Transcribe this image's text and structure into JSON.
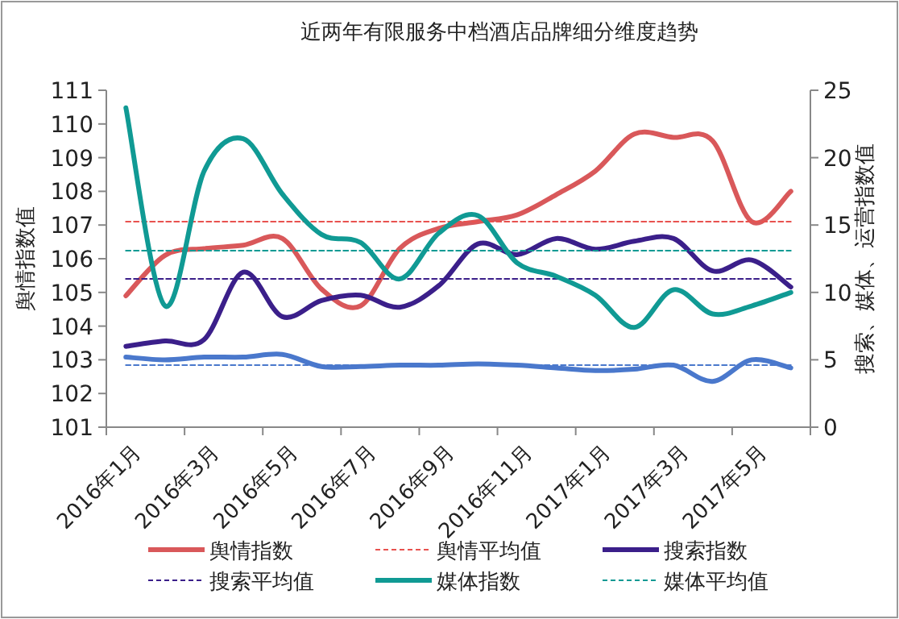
{
  "chart_data": {
    "type": "line",
    "title": "近两年有限服务中档酒店品牌细分维度趋势",
    "ylabel": "舆情指数值",
    "y2label": "搜索、媒体、运营指数值",
    "categories": [
      "2016年1月",
      null,
      "2016年3月",
      null,
      "2016年5月",
      null,
      "2016年7月",
      null,
      "2016年9月",
      null,
      "2016年11月",
      null,
      "2017年1月",
      null,
      "2017年3月",
      null,
      "2017年5月",
      null
    ],
    "series": [
      {
        "name": "舆情指数",
        "color": "#d9585a",
        "line_style": "solid",
        "values": [
          104.9,
          106.1,
          106.3,
          106.4,
          106.6,
          105.1,
          104.6,
          106.3,
          106.9,
          107.1,
          107.3,
          107.9,
          108.6,
          109.7,
          109.6,
          109.5,
          107.1,
          108.0
        ]
      },
      {
        "name": "舆情平均值",
        "color": "#e8524f",
        "line_style": "dashed",
        "values": [
          107.1,
          107.1,
          107.1,
          107.1,
          107.1,
          107.1,
          107.1,
          107.1,
          107.1,
          107.1,
          107.1,
          107.1,
          107.1,
          107.1,
          107.1,
          107.1,
          107.1,
          107.1
        ]
      },
      {
        "name": "搜索指数",
        "color": "#3b1f8a",
        "axis": "y2",
        "line_style": "solid",
        "values": [
          6.0,
          6.4,
          6.5,
          11.5,
          8.2,
          9.4,
          9.8,
          8.9,
          10.5,
          13.6,
          12.8,
          14.0,
          13.2,
          13.8,
          14.0,
          11.6,
          12.4,
          10.4
        ]
      },
      {
        "name": "搜索平均值",
        "color": "#3b1f8a",
        "axis": "y2",
        "line_style": "dashed",
        "values": [
          11.0,
          11.0,
          11.0,
          11.0,
          11.0,
          11.0,
          11.0,
          11.0,
          11.0,
          11.0,
          11.0,
          11.0,
          11.0,
          11.0,
          11.0,
          11.0,
          11.0,
          11.0
        ]
      },
      {
        "name": "媒体指数",
        "color": "#109a94",
        "axis": "y2",
        "line_style": "solid",
        "values": [
          23.7,
          9.0,
          19.0,
          21.4,
          17.3,
          14.3,
          13.7,
          11.0,
          14.4,
          15.7,
          12.2,
          11.2,
          9.8,
          7.4,
          10.2,
          8.4,
          9.0,
          10.0
        ]
      },
      {
        "name": "媒体平均值",
        "color": "#109a94",
        "axis": "y2",
        "line_style": "dashed",
        "values": [
          13.1,
          13.1,
          13.1,
          13.1,
          13.1,
          13.1,
          13.1,
          13.1,
          13.1,
          13.1,
          13.1,
          13.1,
          13.1,
          13.1,
          13.1,
          13.1,
          13.1,
          13.1
        ]
      },
      {
        "color": "#4a78cc",
        "axis": "y2",
        "line_style": "solid",
        "values": [
          5.2,
          5.0,
          5.2,
          5.2,
          5.4,
          4.5,
          4.5,
          4.6,
          4.6,
          4.7,
          4.6,
          4.4,
          4.2,
          4.3,
          4.6,
          3.4,
          5.0,
          4.4
        ]
      },
      {
        "color": "#4a78cc",
        "axis": "y2",
        "line_style": "dashed",
        "values": [
          4.6,
          4.6,
          4.6,
          4.6,
          4.6,
          4.6,
          4.6,
          4.6,
          4.6,
          4.6,
          4.6,
          4.6,
          4.6,
          4.6,
          4.6,
          4.6,
          4.6,
          4.6
        ]
      }
    ],
    "ylim": [
      101,
      111
    ],
    "yticks": [
      101,
      102,
      103,
      104,
      105,
      106,
      107,
      108,
      109,
      110,
      111
    ],
    "y2lim": [
      0,
      25
    ],
    "y2ticks": [
      0,
      5,
      10,
      15,
      20,
      25
    ],
    "legend": "bottom",
    "grid": false
  }
}
